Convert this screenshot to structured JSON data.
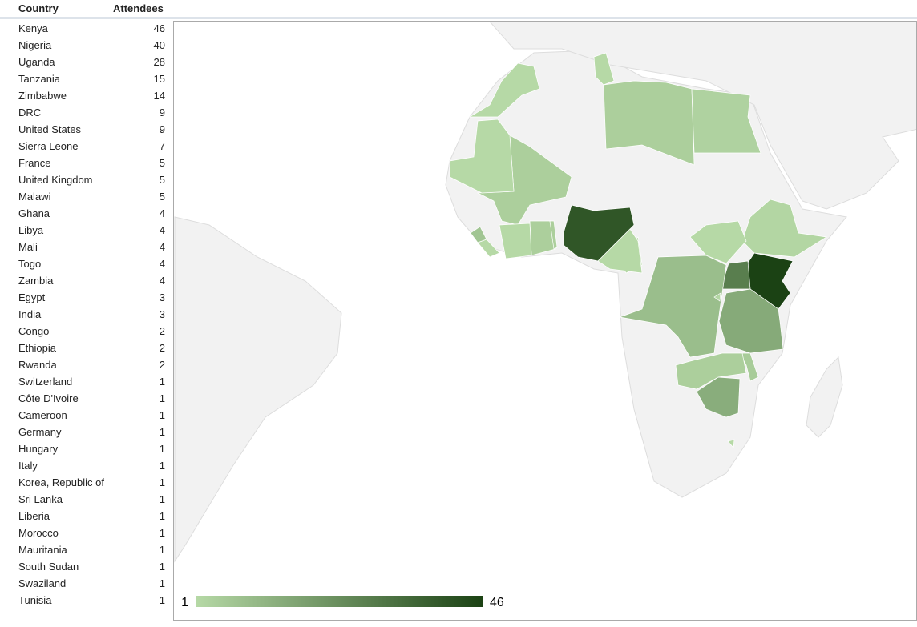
{
  "table": {
    "headers": [
      "Country",
      "Attendees"
    ],
    "rows": [
      [
        "Kenya",
        46
      ],
      [
        "Nigeria",
        40
      ],
      [
        "Uganda",
        28
      ],
      [
        "Tanzania",
        15
      ],
      [
        "Zimbabwe",
        14
      ],
      [
        "DRC",
        9
      ],
      [
        "United States",
        9
      ],
      [
        "Sierra Leone",
        7
      ],
      [
        "France",
        5
      ],
      [
        "United Kingdom",
        5
      ],
      [
        "Malawi",
        5
      ],
      [
        "Ghana",
        4
      ],
      [
        "Libya",
        4
      ],
      [
        "Mali",
        4
      ],
      [
        "Togo",
        4
      ],
      [
        "Zambia",
        4
      ],
      [
        "Egypt",
        3
      ],
      [
        "India",
        3
      ],
      [
        "Congo",
        2
      ],
      [
        "Ethiopia",
        2
      ],
      [
        "Rwanda",
        2
      ],
      [
        "Switzerland",
        1
      ],
      [
        "Côte D'Ivoire",
        1
      ],
      [
        "Cameroon",
        1
      ],
      [
        "Germany",
        1
      ],
      [
        "Hungary",
        1
      ],
      [
        "Italy",
        1
      ],
      [
        "Korea, Republic of",
        1
      ],
      [
        "Sri Lanka",
        1
      ],
      [
        "Liberia",
        1
      ],
      [
        "Morocco",
        1
      ],
      [
        "Mauritania",
        1
      ],
      [
        "South Sudan",
        1
      ],
      [
        "Swaziland",
        1
      ],
      [
        "Tunisia",
        1
      ]
    ]
  },
  "legend": {
    "min": 1,
    "max": 46,
    "colors": [
      "#b6d9a6",
      "#1b4214"
    ]
  }
}
